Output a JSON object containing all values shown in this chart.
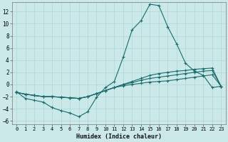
{
  "xlabel": "Humidex (Indice chaleur)",
  "xlim": [
    -0.5,
    23.5
  ],
  "ylim": [
    -6.5,
    13.5
  ],
  "xticks": [
    0,
    1,
    2,
    3,
    4,
    5,
    6,
    7,
    8,
    9,
    10,
    11,
    12,
    13,
    14,
    15,
    16,
    17,
    18,
    19,
    20,
    21,
    22,
    23
  ],
  "yticks": [
    -6,
    -4,
    -2,
    0,
    2,
    4,
    6,
    8,
    10,
    12
  ],
  "background_color": "#cce9e9",
  "grid_color": "#b0d5d5",
  "line_color": "#1a6b6b",
  "line1_x": [
    0,
    1,
    2,
    3,
    4,
    5,
    6,
    7,
    8,
    9,
    10,
    11,
    12,
    13,
    14,
    15,
    16,
    17,
    18,
    19,
    20,
    21,
    22,
    23
  ],
  "line1_y": [
    -1.2,
    -2.3,
    -2.6,
    -2.9,
    -3.8,
    -4.3,
    -4.7,
    -5.3,
    -4.5,
    -2.1,
    -0.5,
    0.5,
    4.5,
    9.0,
    10.5,
    13.2,
    13.0,
    9.5,
    6.7,
    3.5,
    2.2,
    1.5,
    -0.5,
    -0.3
  ],
  "line2_x": [
    0,
    1,
    2,
    3,
    4,
    5,
    6,
    7,
    8,
    9,
    10,
    11,
    12,
    13,
    14,
    15,
    16,
    17,
    18,
    19,
    20,
    21,
    22,
    23
  ],
  "line2_y": [
    -1.3,
    -1.6,
    -1.8,
    -2.0,
    -2.0,
    -2.1,
    -2.2,
    -2.3,
    -2.0,
    -1.5,
    -1.0,
    -0.5,
    0.0,
    0.5,
    1.0,
    1.5,
    1.8,
    2.0,
    2.2,
    2.3,
    2.5,
    2.6,
    2.7,
    -0.3
  ],
  "line3_x": [
    0,
    1,
    2,
    3,
    4,
    5,
    6,
    7,
    8,
    9,
    10,
    11,
    12,
    13,
    14,
    15,
    16,
    17,
    18,
    19,
    20,
    21,
    22,
    23
  ],
  "line3_y": [
    -1.3,
    -1.6,
    -1.8,
    -2.0,
    -2.0,
    -2.1,
    -2.2,
    -2.3,
    -2.0,
    -1.5,
    -1.0,
    -0.5,
    0.0,
    0.3,
    0.7,
    1.0,
    1.2,
    1.4,
    1.6,
    1.8,
    2.0,
    2.2,
    2.3,
    -0.3
  ],
  "line4_x": [
    0,
    1,
    2,
    3,
    4,
    5,
    6,
    7,
    8,
    9,
    10,
    11,
    12,
    13,
    14,
    15,
    16,
    17,
    18,
    19,
    20,
    21,
    22,
    23
  ],
  "line4_y": [
    -1.3,
    -1.6,
    -1.8,
    -2.0,
    -2.0,
    -2.1,
    -2.2,
    -2.3,
    -2.0,
    -1.5,
    -1.0,
    -0.5,
    -0.2,
    0.0,
    0.2,
    0.4,
    0.5,
    0.6,
    0.8,
    1.0,
    1.2,
    1.4,
    1.6,
    -0.3
  ]
}
